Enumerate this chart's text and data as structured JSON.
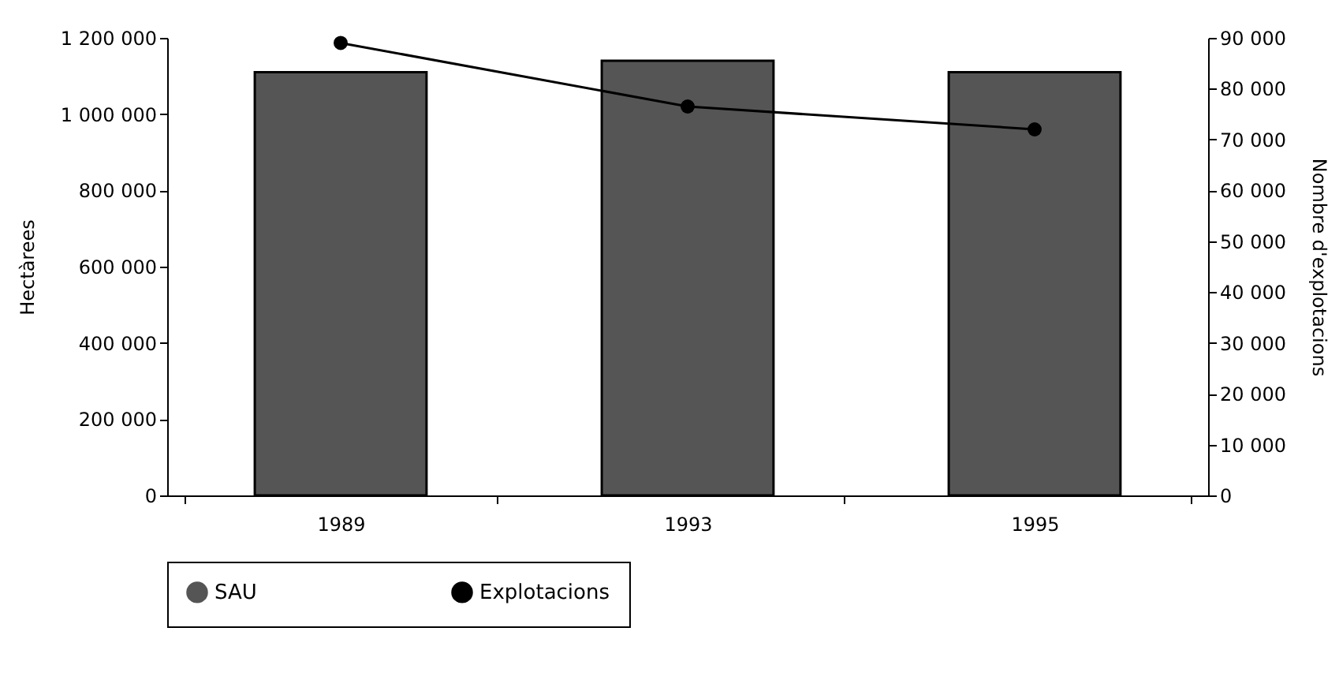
{
  "chart_data": {
    "type": "bar",
    "xlabel": null,
    "ylabel": "Hectàrees",
    "y2label": "Nombre d'explotacions",
    "categories": [
      "1989",
      "1993",
      "1995"
    ],
    "series": [
      {
        "name": "SAU",
        "color": "#555555",
        "values": [
          1110000,
          1140000,
          1110000
        ]
      },
      {
        "name": "Explotacions",
        "type": "line",
        "axis": "y2",
        "color": "#000000",
        "marker": "circle",
        "values": [
          89000,
          76500,
          72000
        ]
      }
    ],
    "ylim": [
      0,
      1200000
    ],
    "yticks": [
      0,
      {
        "value": 200000,
        "label": "200 000"
      },
      {
        "value": 400000,
        "label": "400 000"
      },
      {
        "value": 600000,
        "label": "600 000"
      },
      {
        "value": 800000,
        "label": "800 000"
      },
      {
        "value": 1000000,
        "label": "1 000 000"
      },
      {
        "value": 1200000,
        "label": "1 200 000"
      }
    ],
    "y2lim": [
      0,
      90000
    ],
    "y2ticks": [
      0,
      {
        "value": 10000,
        "label": "10 000"
      },
      {
        "value": 20000,
        "label": "20 000"
      },
      {
        "value": 30000,
        "label": "30 000"
      },
      {
        "value": 40000,
        "label": "40 000"
      },
      {
        "value": 50000,
        "label": "50 000"
      },
      {
        "value": 60000,
        "label": "60 000"
      },
      {
        "value": 70000,
        "label": "70 000"
      },
      {
        "value": 80000,
        "label": "80 000"
      },
      {
        "value": 90000,
        "label": "90 000"
      }
    ],
    "grid": false,
    "legend": "bottom"
  }
}
